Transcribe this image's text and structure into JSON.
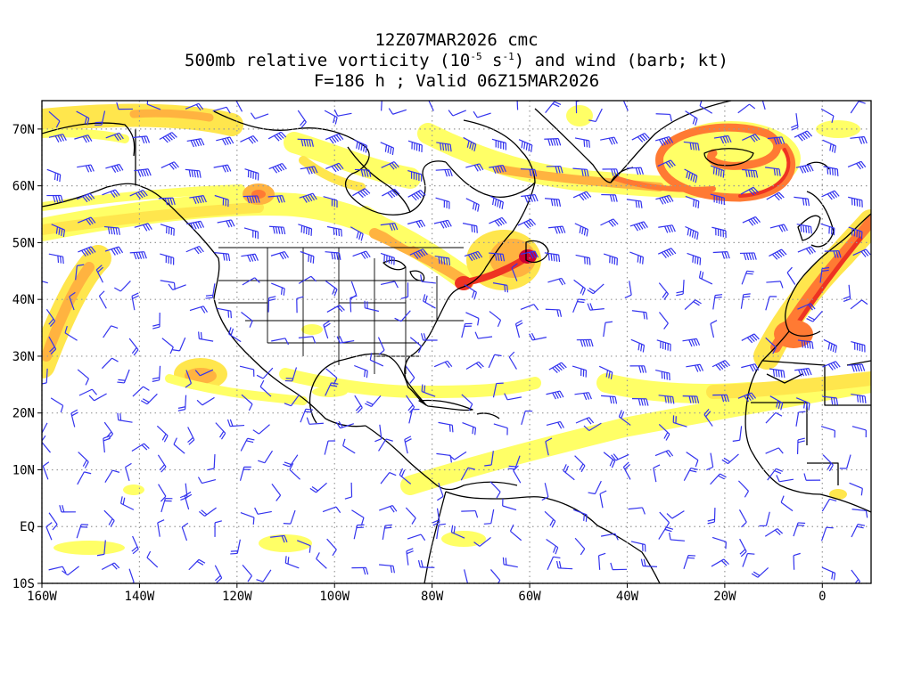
{
  "title": {
    "line1": "12Z07MAR2026 cmc",
    "line2_pre": "500mb relative vorticity (10",
    "line2_exp1": "-5",
    "line2_mid": " s",
    "line2_exp2": "-1",
    "line2_post": ") and wind (barb; kt)",
    "line3": "F=186 h ; Valid 06Z15MAR2026"
  },
  "axes": {
    "lat_labels": [
      "70N",
      "60N",
      "50N",
      "40N",
      "30N",
      "20N",
      "10N",
      "EQ",
      "10S"
    ],
    "lon_labels": [
      "160W",
      "140W",
      "120W",
      "100W",
      "80W",
      "60W",
      "40W",
      "20W",
      "0"
    ],
    "lat_values": [
      70,
      60,
      50,
      40,
      30,
      20,
      10,
      0,
      -10
    ],
    "lon_values": [
      -160,
      -140,
      -120,
      -100,
      -80,
      -60,
      -40,
      -20,
      0
    ],
    "lon_range": [
      -160,
      10
    ],
    "lat_range": [
      -10,
      75
    ],
    "grid": "dotted"
  },
  "colors": {
    "shade_1": "#ffff66",
    "shade_2": "#ffe64d",
    "shade_3": "#ffb340",
    "shade_4": "#ff7a33",
    "shade_5": "#ee3322",
    "shade_6": "#cc0033",
    "barb": "#3333ee",
    "coast": "#000000",
    "grid": "#999999"
  }
}
